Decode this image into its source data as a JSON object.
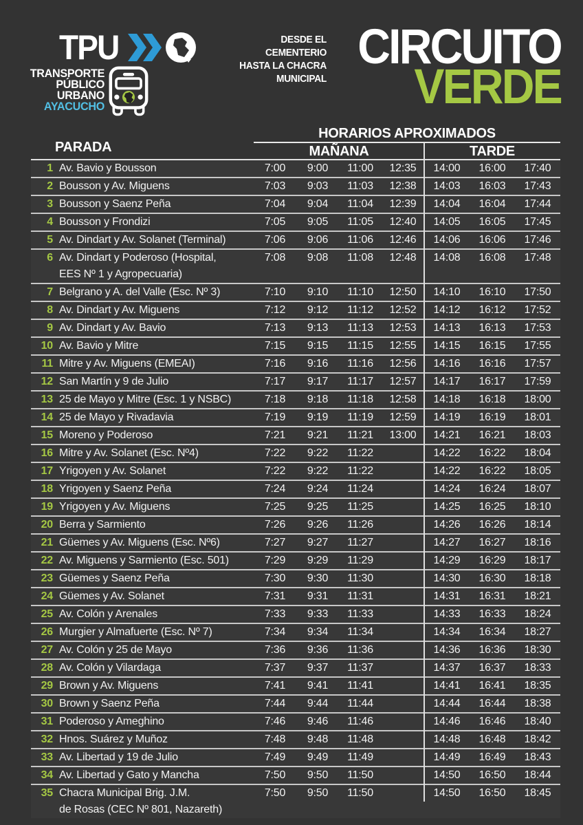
{
  "header": {
    "tpu": "TPU",
    "org_lines": [
      "TRANSPORTE",
      "PÚBLICO",
      "URBANO"
    ],
    "city": "AYACUCHO",
    "route_desc_lines": [
      "DESDE EL CEMENTERIO",
      "HASTA LA CHACRA",
      "MUNICIPAL"
    ],
    "title_white": "CIRCUITO",
    "title_green": "VERDE"
  },
  "table": {
    "parada_header": "PARADA",
    "horarios_header": "HORARIOS APROXIMADOS",
    "morning_header": "MAÑANA",
    "afternoon_header": "TARDE",
    "rows": [
      {
        "n": "1",
        "stop_lines": [
          "Av. Bavio y Bousson"
        ],
        "times": [
          "7:00",
          "9:00",
          "11:00",
          "12:35",
          "14:00",
          "16:00",
          "17:40"
        ]
      },
      {
        "n": "2",
        "stop_lines": [
          "Bousson y Av. Miguens"
        ],
        "times": [
          "7:03",
          "9:03",
          "11:03",
          "12:38",
          "14:03",
          "16:03",
          "17:43"
        ]
      },
      {
        "n": "3",
        "stop_lines": [
          "Bousson y Saenz Peña"
        ],
        "times": [
          "7:04",
          "9:04",
          "11:04",
          "12:39",
          "14:04",
          "16:04",
          "17:44"
        ]
      },
      {
        "n": "4",
        "stop_lines": [
          "Bousson y Frondizi"
        ],
        "times": [
          "7:05",
          "9:05",
          "11:05",
          "12:40",
          "14:05",
          "16:05",
          "17:45"
        ]
      },
      {
        "n": "5",
        "stop_lines": [
          "Av. Dindart y Av. Solanet (Terminal)"
        ],
        "times": [
          "7:06",
          "9:06",
          "11:06",
          "12:46",
          "14:06",
          "16:06",
          "17:46"
        ]
      },
      {
        "n": "6",
        "stop_lines": [
          "Av. Dindart y Poderoso (Hospital,",
          "EES Nº 1 y Agropecuaria)"
        ],
        "times": [
          "7:08",
          "9:08",
          "11:08",
          "12:48",
          "14:08",
          "16:08",
          "17:48"
        ]
      },
      {
        "n": "7",
        "stop_lines": [
          "Belgrano y A. del Valle (Esc. Nº 3)"
        ],
        "times": [
          "7:10",
          "9:10",
          "11:10",
          "12:50",
          "14:10",
          "16:10",
          "17:50"
        ]
      },
      {
        "n": "8",
        "stop_lines": [
          "Av. Dindart y Av. Miguens"
        ],
        "times": [
          "7:12",
          "9:12",
          "11:12",
          "12:52",
          "14:12",
          "16:12",
          "17:52"
        ]
      },
      {
        "n": "9",
        "stop_lines": [
          "Av. Dindart y Av. Bavio"
        ],
        "times": [
          "7:13",
          "9:13",
          "11:13",
          "12:53",
          "14:13",
          "16:13",
          "17:53"
        ]
      },
      {
        "n": "10",
        "stop_lines": [
          "Av. Bavio y Mitre"
        ],
        "times": [
          "7:15",
          "9:15",
          "11:15",
          "12:55",
          "14:15",
          "16:15",
          "17:55"
        ]
      },
      {
        "n": "11",
        "stop_lines": [
          "Mitre y Av. Miguens (EMEAI)"
        ],
        "times": [
          "7:16",
          "9:16",
          "11:16",
          "12:56",
          "14:16",
          "16:16",
          "17:57"
        ]
      },
      {
        "n": "12",
        "stop_lines": [
          "San Martín y 9 de Julio"
        ],
        "times": [
          "7:17",
          "9:17",
          "11:17",
          "12:57",
          "14:17",
          "16:17",
          "17:59"
        ]
      },
      {
        "n": "13",
        "stop_lines": [
          "25 de Mayo y Mitre (Esc. 1 y NSBC)"
        ],
        "times": [
          "7:18",
          "9:18",
          "11:18",
          "12:58",
          "14:18",
          "16:18",
          "18:00"
        ]
      },
      {
        "n": "14",
        "stop_lines": [
          "25 de Mayo y Rivadavia"
        ],
        "times": [
          "7:19",
          "9:19",
          "11:19",
          "12:59",
          "14:19",
          "16:19",
          "18:01"
        ]
      },
      {
        "n": "15",
        "stop_lines": [
          "Moreno y Poderoso"
        ],
        "times": [
          "7:21",
          "9:21",
          "11:21",
          "13:00",
          "14:21",
          "16:21",
          "18:03"
        ]
      },
      {
        "n": "16",
        "stop_lines": [
          "Mitre y Av. Solanet (Esc. Nº4)"
        ],
        "times": [
          "7:22",
          "9:22",
          "11:22",
          "",
          "14:22",
          "16:22",
          "18:04"
        ]
      },
      {
        "n": "17",
        "stop_lines": [
          "Yrigoyen y Av. Solanet"
        ],
        "times": [
          "7:22",
          "9:22",
          "11:22",
          "",
          "14:22",
          "16:22",
          "18:05"
        ]
      },
      {
        "n": "18",
        "stop_lines": [
          "Yrigoyen y Saenz Peña"
        ],
        "times": [
          "7:24",
          "9:24",
          "11:24",
          "",
          "14:24",
          "16:24",
          "18:07"
        ]
      },
      {
        "n": "19",
        "stop_lines": [
          "Yrigoyen y Av. Miguens"
        ],
        "times": [
          "7:25",
          "9:25",
          "11:25",
          "",
          "14:25",
          "16:25",
          "18:10"
        ]
      },
      {
        "n": "20",
        "stop_lines": [
          "Berra y Sarmiento"
        ],
        "times": [
          "7:26",
          "9:26",
          "11:26",
          "",
          "14:26",
          "16:26",
          "18:14"
        ]
      },
      {
        "n": "21",
        "stop_lines": [
          "Güemes y Av. Miguens (Esc. Nº6)"
        ],
        "times": [
          "7:27",
          "9:27",
          "11:27",
          "",
          "14:27",
          "16:27",
          "18:16"
        ]
      },
      {
        "n": "22",
        "stop_lines": [
          "Av. Miguens y Sarmiento (Esc. 501)"
        ],
        "times": [
          "7:29",
          "9:29",
          "11:29",
          "",
          "14:29",
          "16:29",
          "18:17"
        ]
      },
      {
        "n": "23",
        "stop_lines": [
          "Güemes y Saenz Peña"
        ],
        "times": [
          "7:30",
          "9:30",
          "11:30",
          "",
          "14:30",
          "16:30",
          "18:18"
        ]
      },
      {
        "n": "24",
        "stop_lines": [
          "Güemes y Av. Solanet"
        ],
        "times": [
          "7:31",
          "9:31",
          "11:31",
          "",
          "14:31",
          "16:31",
          "18:21"
        ]
      },
      {
        "n": "25",
        "stop_lines": [
          "Av. Colón y Arenales"
        ],
        "times": [
          "7:33",
          "9:33",
          "11:33",
          "",
          "14:33",
          "16:33",
          "18:24"
        ]
      },
      {
        "n": "26",
        "stop_lines": [
          "Murgier y Almafuerte (Esc. Nº 7)"
        ],
        "times": [
          "7:34",
          "9:34",
          "11:34",
          "",
          "14:34",
          "16:34",
          "18:27"
        ]
      },
      {
        "n": "27",
        "stop_lines": [
          "Av. Colón y 25 de Mayo"
        ],
        "times": [
          "7:36",
          "9:36",
          "11:36",
          "",
          "14:36",
          "16:36",
          "18:30"
        ]
      },
      {
        "n": "28",
        "stop_lines": [
          "Av. Colón y Vilardaga"
        ],
        "times": [
          "7:37",
          "9:37",
          "11:37",
          "",
          "14:37",
          "16:37",
          "18:33"
        ]
      },
      {
        "n": "29",
        "stop_lines": [
          "Brown y Av. Miguens"
        ],
        "times": [
          "7:41",
          "9:41",
          "11:41",
          "",
          "14:41",
          "16:41",
          "18:35"
        ]
      },
      {
        "n": "30",
        "stop_lines": [
          "Brown y Saenz Peña"
        ],
        "times": [
          "7:44",
          "9:44",
          "11:44",
          "",
          "14:44",
          "16:44",
          "18:38"
        ]
      },
      {
        "n": "31",
        "stop_lines": [
          "Poderoso y Ameghino"
        ],
        "times": [
          "7:46",
          "9:46",
          "11:46",
          "",
          "14:46",
          "16:46",
          "18:40"
        ]
      },
      {
        "n": "32",
        "stop_lines": [
          "Hnos. Suárez y Muñoz"
        ],
        "times": [
          "7:48",
          "9:48",
          "11:48",
          "",
          "14:48",
          "16:48",
          "18:42"
        ]
      },
      {
        "n": "33",
        "stop_lines": [
          "Av. Libertad y 19 de Julio"
        ],
        "times": [
          "7:49",
          "9:49",
          "11:49",
          "",
          "14:49",
          "16:49",
          "18:43"
        ]
      },
      {
        "n": "34",
        "stop_lines": [
          "Av. Libertad y Gato y Mancha"
        ],
        "times": [
          "7:50",
          "9:50",
          "11:50",
          "",
          "14:50",
          "16:50",
          "18:44"
        ]
      },
      {
        "n": "35",
        "stop_lines": [
          "Chacra Municipal Brig. J.M.",
          "de Rosas (CEC Nº 801, Nazareth)"
        ],
        "times": [
          "7:50",
          "9:50",
          "11:50",
          "",
          "14:50",
          "16:50",
          "18:45"
        ]
      }
    ]
  },
  "colors": {
    "background": "#333333",
    "row_background": "#383838",
    "separator": "#c8c8c8",
    "accent_green": "#a5c844",
    "chevron_blue": "#2e9bd6",
    "city_blue": "#52bfe4",
    "text_white": "#f2f2f2"
  }
}
